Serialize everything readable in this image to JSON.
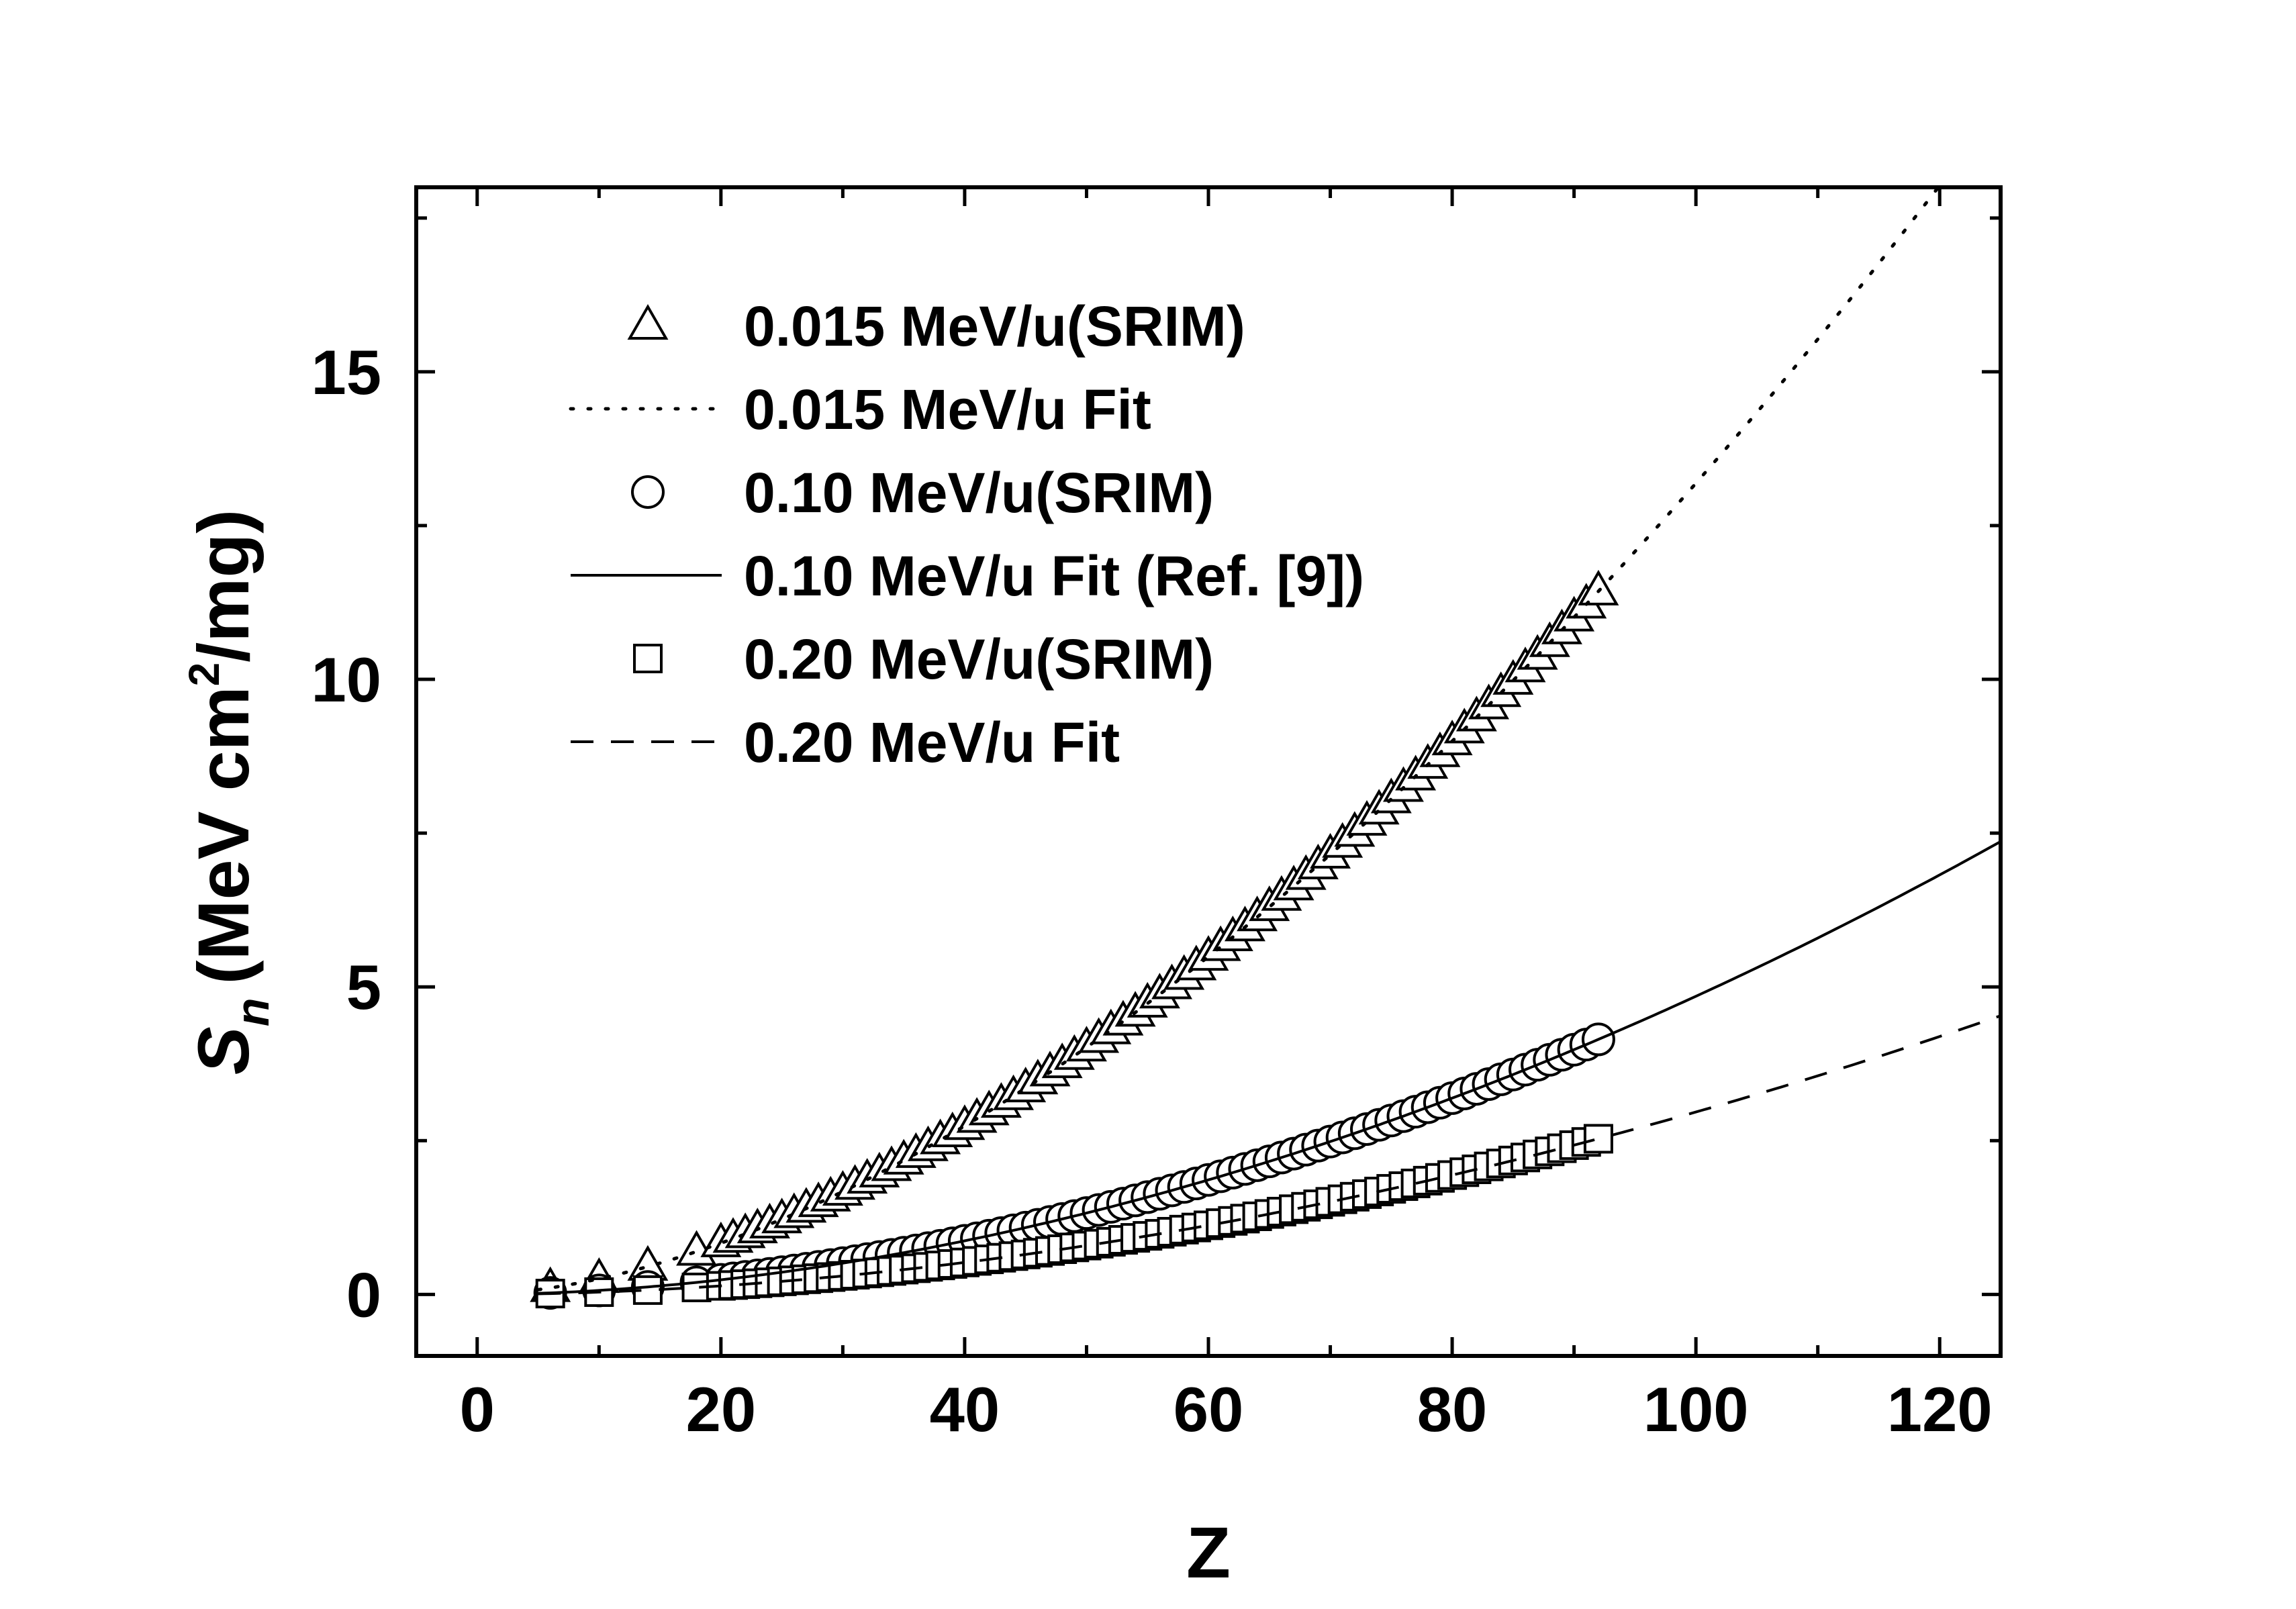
{
  "chart_data": {
    "type": "scatter",
    "title": "",
    "xlabel": "Z",
    "ylabel": {
      "symbol": "S",
      "subscript": "n",
      "units_before": "(MeV cm",
      "superscript": "2",
      "units_after": "/mg)"
    },
    "xlim": [
      -5,
      125
    ],
    "ylim": [
      -1,
      18
    ],
    "x_ticks": [
      0,
      20,
      40,
      60,
      80,
      100,
      120
    ],
    "x_tick_labels": [
      "0",
      "20",
      "40",
      "60",
      "80",
      "100",
      "120"
    ],
    "y_ticks": [
      0,
      5,
      10,
      15
    ],
    "y_tick_labels": [
      "0",
      "5",
      "10",
      "15"
    ],
    "grid": false,
    "legend_position": "top-left",
    "series": [
      {
        "name": "0.015 MeV/u(SRIM)",
        "kind": "markers",
        "marker": "triangle",
        "fit_coefficient": 0.0049,
        "fit_exponent": 1.715,
        "x": [
          6,
          10,
          14,
          18,
          20,
          21,
          22,
          23,
          24,
          25,
          26,
          27,
          28,
          29,
          30,
          31,
          32,
          33,
          34,
          35,
          36,
          37,
          38,
          39,
          40,
          41,
          42,
          43,
          44,
          45,
          46,
          47,
          48,
          49,
          50,
          51,
          52,
          53,
          54,
          55,
          56,
          57,
          58,
          59,
          60,
          61,
          62,
          63,
          64,
          65,
          66,
          67,
          68,
          69,
          70,
          71,
          72,
          73,
          74,
          75,
          76,
          77,
          78,
          79,
          80,
          81,
          82,
          83,
          84,
          85,
          86,
          87,
          88,
          89,
          90,
          91,
          92
        ]
      },
      {
        "name": "0.015 MeV/u Fit",
        "kind": "line",
        "dash": "dotted",
        "fit_coefficient": 0.0049,
        "fit_exponent": 1.715,
        "x_range": [
          5,
          125
        ]
      },
      {
        "name": "0.10 MeV/u(SRIM)",
        "kind": "markers",
        "marker": "circle",
        "fit_coefficient": 0.00087,
        "fit_exponent": 1.873,
        "x": [
          6,
          10,
          14,
          18,
          20,
          21,
          22,
          23,
          24,
          25,
          26,
          27,
          28,
          29,
          30,
          31,
          32,
          33,
          34,
          35,
          36,
          37,
          38,
          39,
          40,
          41,
          42,
          43,
          44,
          45,
          46,
          47,
          48,
          49,
          50,
          51,
          52,
          53,
          54,
          55,
          56,
          57,
          58,
          59,
          60,
          61,
          62,
          63,
          64,
          65,
          66,
          67,
          68,
          69,
          70,
          71,
          72,
          73,
          74,
          75,
          76,
          77,
          78,
          79,
          80,
          81,
          82,
          83,
          84,
          85,
          86,
          87,
          88,
          89,
          90,
          91,
          92
        ]
      },
      {
        "name": "0.10 MeV/u Fit (Ref. [9])",
        "kind": "line",
        "dash": "solid",
        "fit_coefficient": 0.00087,
        "fit_exponent": 1.873,
        "x_range": [
          5,
          125
        ]
      },
      {
        "name": "0.20 MeV/u(SRIM)",
        "kind": "markers",
        "marker": "square",
        "fit_coefficient": 0.00047,
        "fit_exponent": 1.9,
        "x": [
          6,
          10,
          14,
          18,
          20,
          21,
          22,
          23,
          24,
          25,
          26,
          27,
          28,
          29,
          30,
          31,
          32,
          33,
          34,
          35,
          36,
          37,
          38,
          39,
          40,
          41,
          42,
          43,
          44,
          45,
          46,
          47,
          48,
          49,
          50,
          51,
          52,
          53,
          54,
          55,
          56,
          57,
          58,
          59,
          60,
          61,
          62,
          63,
          64,
          65,
          66,
          67,
          68,
          69,
          70,
          71,
          72,
          73,
          74,
          75,
          76,
          77,
          78,
          79,
          80,
          81,
          82,
          83,
          84,
          85,
          86,
          87,
          88,
          89,
          90,
          91,
          92
        ]
      },
      {
        "name": "0.20 MeV/u Fit",
        "kind": "line",
        "dash": "dashed",
        "fit_coefficient": 0.00047,
        "fit_exponent": 1.9,
        "x_range": [
          5,
          125
        ]
      }
    ]
  }
}
